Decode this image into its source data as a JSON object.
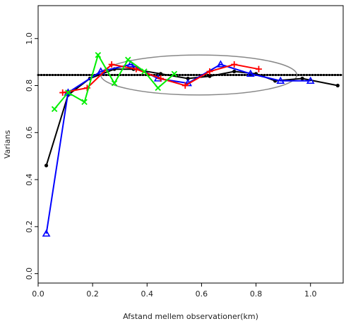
{
  "chart_data": {
    "type": "line",
    "title": "",
    "xlabel": "Afstand mellem observationer(km)",
    "ylabel": "Varians",
    "xlim": [
      0,
      1.12
    ],
    "ylim": [
      -0.04,
      1.14
    ],
    "x_ticks": [
      "0.0",
      "0.2",
      "0.4",
      "0.6",
      "0.8",
      "1.0"
    ],
    "y_ticks": [
      "0.0",
      "0.2",
      "0.4",
      "0.6",
      "0.8",
      "1.0"
    ],
    "grid": false,
    "legend": "none",
    "reference_line": {
      "y": 0.845,
      "style": "dotted",
      "color": "#000000"
    },
    "annotation_ellipse": {
      "cx": 0.59,
      "cy": 0.845,
      "rx": 0.36,
      "ry": 0.085,
      "color": "#888888"
    },
    "series": [
      {
        "color": "#000000",
        "marker": "dot",
        "x": [
          0.03,
          0.11,
          0.19,
          0.28,
          0.35,
          0.45,
          0.55,
          0.63,
          0.72,
          0.8,
          0.87,
          0.97,
          1.1
        ],
        "y": [
          0.46,
          0.76,
          0.83,
          0.87,
          0.87,
          0.85,
          0.83,
          0.84,
          0.86,
          0.85,
          0.82,
          0.83,
          0.8
        ]
      },
      {
        "color": "#0000ff",
        "marker": "triangle",
        "x": [
          0.03,
          0.11,
          0.23,
          0.34,
          0.44,
          0.55,
          0.67,
          0.78,
          0.89,
          1.0
        ],
        "y": [
          0.17,
          0.77,
          0.86,
          0.89,
          0.83,
          0.81,
          0.89,
          0.85,
          0.82,
          0.82
        ]
      },
      {
        "color": "#ff0000",
        "marker": "plus",
        "x": [
          0.09,
          0.18,
          0.27,
          0.36,
          0.45,
          0.54,
          0.63,
          0.72,
          0.81
        ],
        "y": [
          0.77,
          0.79,
          0.89,
          0.87,
          0.83,
          0.8,
          0.86,
          0.89,
          0.87
        ]
      },
      {
        "color": "#00ee00",
        "marker": "x",
        "x": [
          0.06,
          0.11,
          0.17,
          0.22,
          0.28,
          0.33,
          0.39,
          0.44,
          0.5
        ],
        "y": [
          0.7,
          0.77,
          0.73,
          0.93,
          0.81,
          0.91,
          0.86,
          0.79,
          0.85
        ]
      }
    ]
  }
}
